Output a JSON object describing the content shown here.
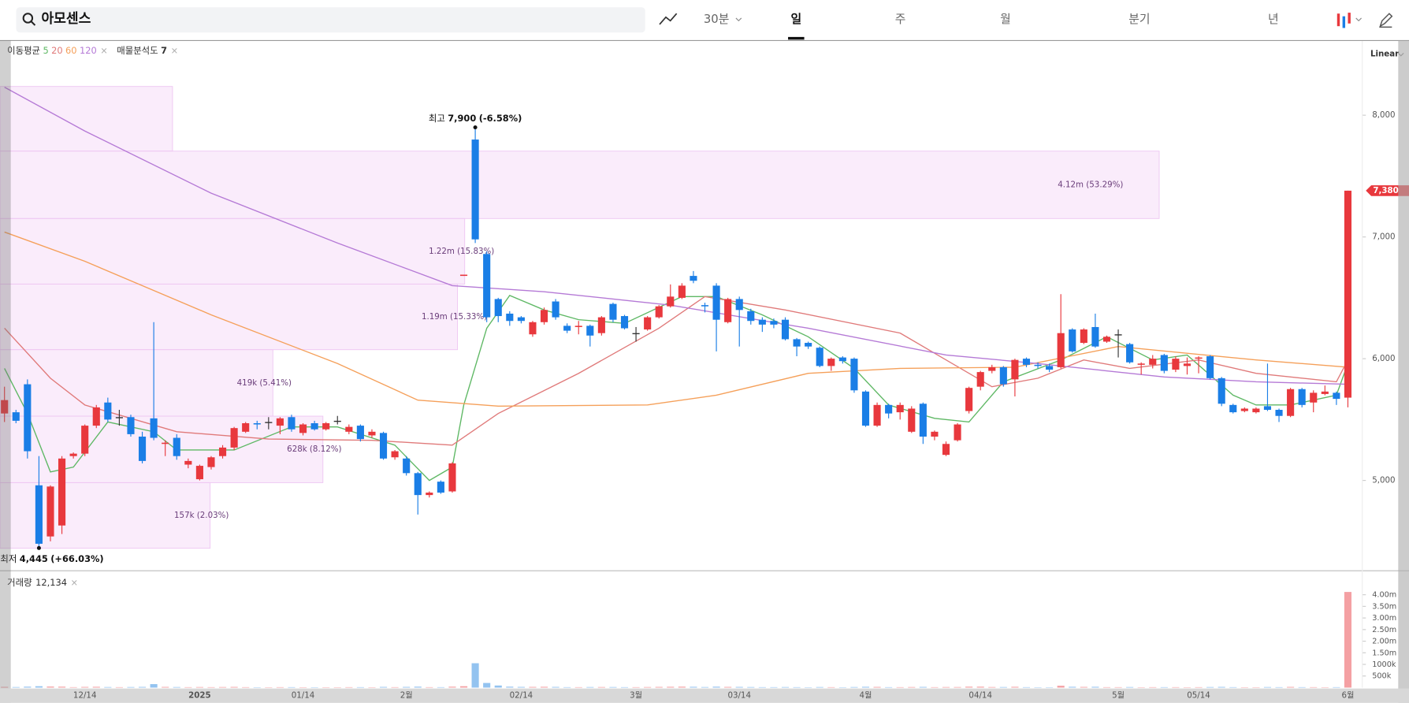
{
  "header": {
    "search": "아모센스",
    "interval": "30분",
    "tabs": [
      "일",
      "주",
      "월",
      "분기",
      "년"
    ],
    "selected_tab": 0
  },
  "indicators": {
    "ma_label": "이동평균",
    "profile_label": "매물분석도",
    "profile_count": "7"
  },
  "scale_mode": "Linear",
  "chart_data": {
    "type": "candlestick",
    "up_color": "#e8383d",
    "down_color": "#1a7ee6",
    "flat_color": "#333333",
    "categories": [
      null,
      null,
      null,
      null,
      null,
      null,
      null,
      "12/14",
      null,
      null,
      null,
      null,
      null,
      null,
      null,
      null,
      null,
      "2025",
      null,
      null,
      null,
      null,
      null,
      null,
      null,
      null,
      "01/14",
      null,
      null,
      null,
      null,
      null,
      null,
      null,
      null,
      "2월",
      null,
      null,
      null,
      null,
      null,
      null,
      null,
      null,
      null,
      "02/14",
      null,
      null,
      null,
      null,
      null,
      null,
      null,
      null,
      null,
      "3월",
      null,
      null,
      null,
      null,
      null,
      null,
      null,
      null,
      "03/14",
      null,
      null,
      null,
      null,
      null,
      null,
      null,
      null,
      null,
      null,
      "4월",
      null,
      null,
      null,
      null,
      null,
      null,
      null,
      null,
      null,
      "04/14",
      null,
      null,
      null,
      null,
      null,
      null,
      null,
      null,
      null,
      null,
      null,
      "5월",
      null,
      null,
      null,
      null,
      null,
      null,
      "05/14",
      null,
      null,
      null,
      null,
      null,
      null,
      null,
      null,
      null,
      null,
      null,
      null,
      "6월"
    ],
    "ohlc": [
      [
        5550,
        5770,
        5480,
        5660
      ],
      [
        5560,
        5580,
        5470,
        5490
      ],
      [
        5790,
        5830,
        5180,
        5240
      ],
      [
        4960,
        5200,
        4445,
        4480
      ],
      [
        4540,
        4960,
        4500,
        4950
      ],
      [
        4630,
        5200,
        4560,
        5180
      ],
      [
        5200,
        5230,
        5180,
        5220
      ],
      [
        5220,
        5460,
        5200,
        5450
      ],
      [
        5450,
        5620,
        5430,
        5600
      ],
      [
        5640,
        5680,
        5480,
        5500
      ],
      [
        5520,
        5580,
        5450,
        5520
      ],
      [
        5520,
        5540,
        5360,
        5380
      ],
      [
        5360,
        5400,
        5140,
        5160
      ],
      [
        5510,
        6300,
        5330,
        5350
      ],
      [
        5300,
        5330,
        5200,
        5310
      ],
      [
        5350,
        5380,
        5170,
        5200
      ],
      [
        5130,
        5180,
        5100,
        5160
      ],
      [
        5010,
        5130,
        5000,
        5120
      ],
      [
        5110,
        5200,
        5090,
        5190
      ],
      [
        5200,
        5290,
        5180,
        5270
      ],
      [
        5270,
        5440,
        5250,
        5430
      ],
      [
        5400,
        5480,
        5390,
        5470
      ],
      [
        5470,
        5490,
        5420,
        5460
      ],
      [
        5480,
        5520,
        5420,
        5480
      ],
      [
        5450,
        5520,
        5380,
        5510
      ],
      [
        5520,
        5540,
        5400,
        5420
      ],
      [
        5390,
        5470,
        5370,
        5460
      ],
      [
        5470,
        5490,
        5410,
        5420
      ],
      [
        5420,
        5480,
        5410,
        5470
      ],
      [
        5490,
        5530,
        5460,
        5490
      ],
      [
        5400,
        5460,
        5380,
        5440
      ],
      [
        5450,
        5460,
        5320,
        5340
      ],
      [
        5370,
        5420,
        5350,
        5400
      ],
      [
        5390,
        5400,
        5170,
        5180
      ],
      [
        5190,
        5250,
        5170,
        5240
      ],
      [
        5180,
        5200,
        5040,
        5060
      ],
      [
        5060,
        5070,
        4720,
        4880
      ],
      [
        4880,
        4910,
        4860,
        4900
      ],
      [
        4990,
        5000,
        4890,
        4900
      ],
      [
        4910,
        5150,
        4900,
        5140
      ],
      [
        6680,
        6690,
        6680,
        6690
      ],
      [
        7800,
        7900,
        6950,
        6980
      ],
      [
        6860,
        6880,
        6300,
        6340
      ],
      [
        6490,
        6500,
        6300,
        6350
      ],
      [
        6370,
        6390,
        6270,
        6310
      ],
      [
        6340,
        6350,
        6290,
        6310
      ],
      [
        6200,
        6310,
        6180,
        6300
      ],
      [
        6300,
        6420,
        6280,
        6400
      ],
      [
        6470,
        6490,
        6320,
        6340
      ],
      [
        6270,
        6290,
        6210,
        6230
      ],
      [
        6260,
        6310,
        6200,
        6270
      ],
      [
        6270,
        6280,
        6100,
        6190
      ],
      [
        6210,
        6350,
        6190,
        6340
      ],
      [
        6450,
        6460,
        6300,
        6320
      ],
      [
        6350,
        6360,
        6240,
        6250
      ],
      [
        6210,
        6260,
        6140,
        6210
      ],
      [
        6240,
        6350,
        6230,
        6340
      ],
      [
        6340,
        6440,
        6330,
        6430
      ],
      [
        6430,
        6610,
        6420,
        6510
      ],
      [
        6500,
        6620,
        6490,
        6600
      ],
      [
        6680,
        6720,
        6620,
        6640
      ],
      [
        6440,
        6460,
        6380,
        6430
      ],
      [
        6600,
        6620,
        6060,
        6320
      ],
      [
        6300,
        6500,
        6290,
        6490
      ],
      [
        6490,
        6510,
        6100,
        6400
      ],
      [
        6390,
        6410,
        6280,
        6310
      ],
      [
        6320,
        6340,
        6220,
        6280
      ],
      [
        6310,
        6330,
        6250,
        6280
      ],
      [
        6320,
        6340,
        6150,
        6160
      ],
      [
        6160,
        6170,
        6020,
        6100
      ],
      [
        6130,
        6140,
        6080,
        6100
      ],
      [
        6090,
        6100,
        5930,
        5940
      ],
      [
        5940,
        6010,
        5900,
        6000
      ],
      [
        6010,
        6020,
        5960,
        5980
      ],
      [
        6000,
        6010,
        5720,
        5740
      ],
      [
        5730,
        5740,
        5440,
        5450
      ],
      [
        5450,
        5640,
        5440,
        5620
      ],
      [
        5620,
        5630,
        5510,
        5550
      ],
      [
        5560,
        5640,
        5500,
        5620
      ],
      [
        5400,
        5610,
        5390,
        5590
      ],
      [
        5630,
        5640,
        5300,
        5360
      ],
      [
        5360,
        5410,
        5330,
        5400
      ],
      [
        5210,
        5320,
        5200,
        5300
      ],
      [
        5330,
        5470,
        5320,
        5460
      ],
      [
        5570,
        5770,
        5550,
        5760
      ],
      [
        5770,
        5900,
        5740,
        5890
      ],
      [
        5900,
        5950,
        5880,
        5930
      ],
      [
        5930,
        5940,
        5770,
        5790
      ],
      [
        5830,
        6000,
        5690,
        5990
      ],
      [
        6000,
        6010,
        5930,
        5950
      ],
      [
        5950,
        5970,
        5920,
        5940
      ],
      [
        5940,
        5960,
        5890,
        5910
      ],
      [
        5930,
        6530,
        5920,
        6210
      ],
      [
        6240,
        6250,
        6050,
        6060
      ],
      [
        6130,
        6250,
        6120,
        6240
      ],
      [
        6260,
        6370,
        6090,
        6100
      ],
      [
        6140,
        6190,
        6130,
        6180
      ],
      [
        6200,
        6240,
        6010,
        6200
      ],
      [
        6120,
        6130,
        5960,
        5970
      ],
      [
        5950,
        5970,
        5870,
        5960
      ],
      [
        5950,
        6030,
        5920,
        6000
      ],
      [
        6030,
        6040,
        5880,
        5900
      ],
      [
        5910,
        6020,
        5890,
        6000
      ],
      [
        5940,
        6010,
        5870,
        5960
      ],
      [
        6000,
        6020,
        5880,
        6010
      ],
      [
        6020,
        6030,
        5830,
        5840
      ],
      [
        5840,
        5850,
        5610,
        5630
      ],
      [
        5620,
        5630,
        5550,
        5560
      ],
      [
        5570,
        5600,
        5560,
        5590
      ],
      [
        5560,
        5600,
        5550,
        5590
      ],
      [
        5610,
        5960,
        5570,
        5580
      ],
      [
        5580,
        5590,
        5480,
        5530
      ],
      [
        5530,
        5760,
        5520,
        5750
      ],
      [
        5750,
        5760,
        5600,
        5620
      ],
      [
        5640,
        5740,
        5560,
        5720
      ],
      [
        5710,
        5780,
        5700,
        5730
      ],
      [
        5720,
        5730,
        5620,
        5670
      ],
      [
        5680,
        7380,
        5600,
        7380
      ]
    ],
    "ylim": [
      4258,
      8613
    ],
    "yticks": [
      {
        "value": 8000,
        "label": "8,000"
      },
      {
        "value": 7000,
        "label": "7,000"
      },
      {
        "value": 6000,
        "label": "6,000"
      },
      {
        "value": 5000,
        "label": "5,000"
      }
    ],
    "moving_averages": [
      {
        "name": "5",
        "color": "#5fb865",
        "x": [
          0,
          2,
          4,
          6,
          9,
          13,
          15,
          20,
          25,
          29,
          34,
          37,
          39,
          40,
          42,
          44,
          47,
          50,
          54,
          59,
          62,
          66,
          70,
          74,
          77,
          81,
          84,
          87,
          92,
          96,
          100,
          103,
          107,
          109,
          112,
          116,
          117
        ],
        "values": [
          5920,
          5550,
          5070,
          5110,
          5480,
          5400,
          5250,
          5250,
          5440,
          5440,
          5290,
          5000,
          5110,
          5620,
          6250,
          6520,
          6400,
          6320,
          6290,
          6510,
          6510,
          6360,
          6180,
          5920,
          5620,
          5510,
          5480,
          5810,
          5990,
          6180,
          5990,
          6030,
          5700,
          5620,
          5620,
          5700,
          5960
        ]
      },
      {
        "name": "20",
        "color": "#e07a7a",
        "x": [
          0,
          4,
          7,
          15,
          23,
          32,
          39,
          43,
          50,
          57,
          61,
          68,
          78,
          82,
          86,
          90,
          94,
          98,
          104,
          109,
          116,
          117
        ],
        "values": [
          6250,
          5840,
          5620,
          5400,
          5340,
          5330,
          5290,
          5550,
          5880,
          6250,
          6510,
          6400,
          6210,
          5990,
          5770,
          5840,
          5990,
          5920,
          5990,
          5880,
          5810,
          5990
        ]
      },
      {
        "name": "60",
        "color": "#f5a05a",
        "x": [
          0,
          7,
          18,
          29,
          36,
          43,
          56,
          62,
          70,
          78,
          88,
          97,
          109,
          117
        ],
        "values": [
          7040,
          6800,
          6360,
          5960,
          5660,
          5610,
          5620,
          5700,
          5880,
          5920,
          5930,
          6100,
          5990,
          5930
        ]
      },
      {
        "name": "120",
        "color": "#b57ad6",
        "x": [
          0,
          7,
          18,
          29,
          39,
          47,
          58,
          70,
          82,
          90,
          101,
          109,
          117
        ],
        "values": [
          8230,
          7870,
          7360,
          6950,
          6600,
          6550,
          6440,
          6250,
          6030,
          5960,
          5850,
          5810,
          5790
        ]
      }
    ],
    "profile": {
      "color": "#f6dcf8",
      "bands": [
        {
          "low": 7705,
          "high": 8236
        },
        {
          "low": 7151,
          "high": 7705,
          "volume": 4120000,
          "label": "4.12m (53.29%)"
        },
        {
          "low": 6613,
          "high": 7151,
          "volume": 1220000,
          "label": "1.22m (15.83%)"
        },
        {
          "low": 6074,
          "high": 6613,
          "volume": 1190000,
          "label": "1.19m (15.33%)"
        },
        {
          "low": 5528,
          "high": 6074,
          "volume": 419000,
          "label": "419k (5.41%)"
        },
        {
          "low": 4982,
          "high": 5528,
          "volume": 628000,
          "label": "628k (8.12%)"
        },
        {
          "low": 4443,
          "high": 4982,
          "volume": 157000,
          "label": "157k (2.03%)"
        }
      ]
    },
    "annotations": {
      "high": {
        "label": "최고",
        "value": 7900,
        "value_label": "7,900",
        "change": "(-6.58%)",
        "index": 41
      },
      "low": {
        "label": "최저",
        "value": 4445,
        "value_label": "4,445",
        "change": "(+66.03%)",
        "index": 3
      }
    },
    "last_price": {
      "value": 7380,
      "label": "7,380"
    },
    "volume": {
      "label": "거래량",
      "current": "12,134",
      "up_color": "#f4a0a3",
      "down_color": "#93c3f0",
      "ylim": [
        0,
        4800000
      ],
      "yticks": [
        {
          "value": 4000000,
          "label": "4.00m"
        },
        {
          "value": 3500000,
          "label": "3.50m"
        },
        {
          "value": 3000000,
          "label": "3.00m"
        },
        {
          "value": 2500000,
          "label": "2.50m"
        },
        {
          "value": 2000000,
          "label": "2.00m"
        },
        {
          "value": 1500000,
          "label": "1.50m"
        },
        {
          "value": 1000000,
          "label": "1000k"
        },
        {
          "value": 500000,
          "label": "500k"
        }
      ],
      "values": [
        30000,
        25000,
        40000,
        60000,
        45000,
        40000,
        20000,
        30000,
        35000,
        25000,
        20000,
        25000,
        30000,
        150000,
        30000,
        25000,
        20000,
        25000,
        20000,
        25000,
        30000,
        20000,
        15000,
        15000,
        20000,
        20000,
        15000,
        15000,
        15000,
        15000,
        20000,
        20000,
        15000,
        30000,
        20000,
        30000,
        40000,
        20000,
        20000,
        40000,
        60000,
        1050000,
        200000,
        90000,
        40000,
        30000,
        30000,
        35000,
        30000,
        20000,
        20000,
        25000,
        25000,
        25000,
        20000,
        20000,
        25000,
        30000,
        35000,
        40000,
        35000,
        25000,
        40000,
        30000,
        30000,
        25000,
        20000,
        20000,
        25000,
        20000,
        15000,
        25000,
        20000,
        15000,
        25000,
        35000,
        30000,
        20000,
        20000,
        25000,
        30000,
        20000,
        25000,
        25000,
        40000,
        40000,
        25000,
        25000,
        35000,
        20000,
        15000,
        15000,
        80000,
        35000,
        30000,
        35000,
        20000,
        20000,
        25000,
        15000,
        20000,
        20000,
        20000,
        15000,
        20000,
        25000,
        30000,
        20000,
        15000,
        15000,
        25000,
        20000,
        30000,
        20000,
        20000,
        15000,
        20000,
        4120000
      ]
    }
  }
}
